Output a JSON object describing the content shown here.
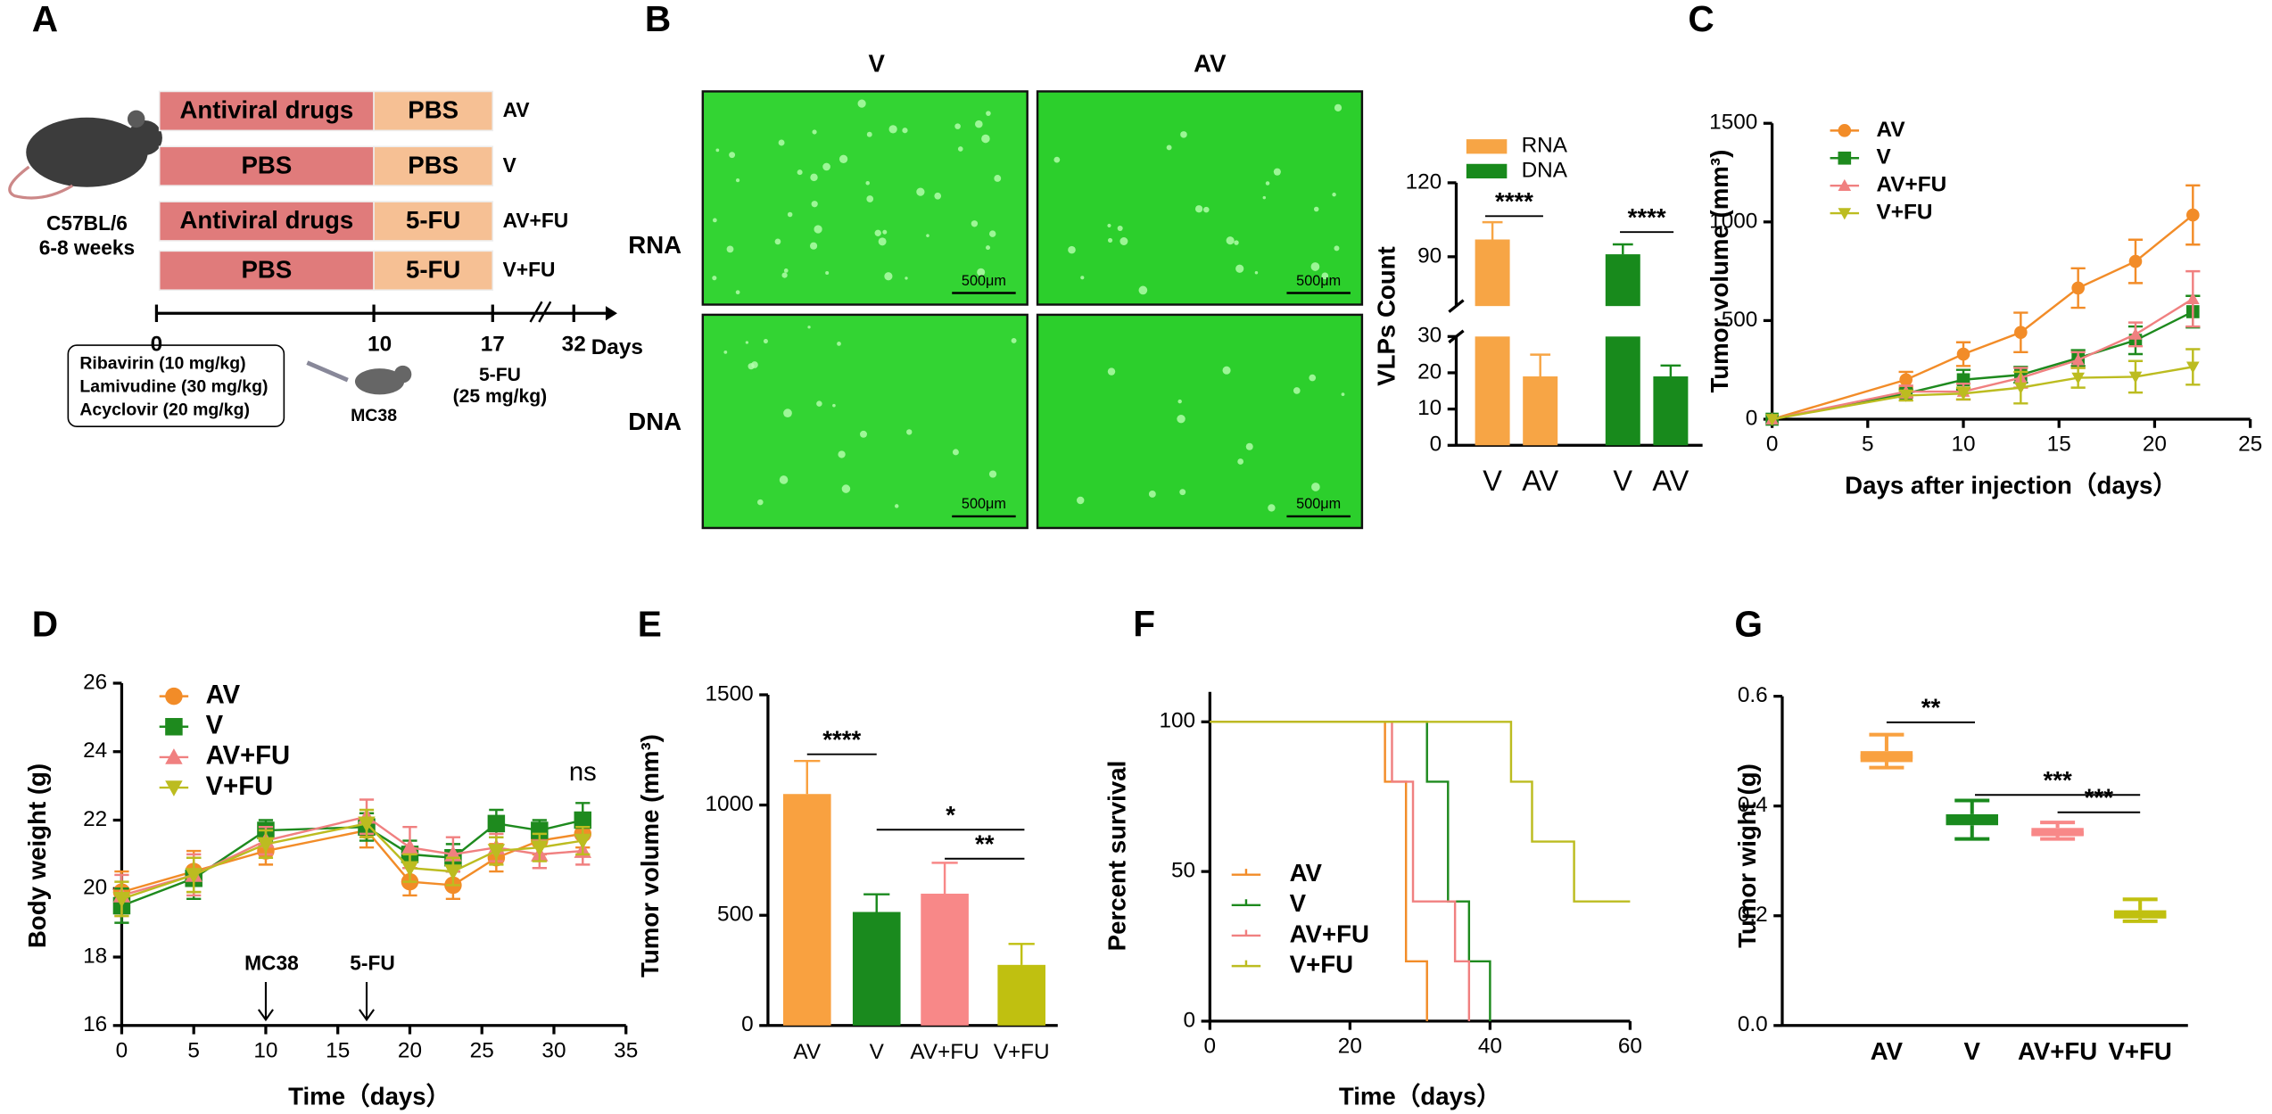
{
  "diagram": {
    "panel": "A",
    "strain": "C57BL/6",
    "age": "6-8 weeks",
    "groups": [
      {
        "drug": "Antiviral drugs",
        "treatment": "PBS",
        "name": "AV"
      },
      {
        "drug": "PBS",
        "treatment": "PBS",
        "name": "V"
      },
      {
        "drug": "Antiviral drugs",
        "treatment": "5-FU",
        "name": "AV+FU"
      },
      {
        "drug": "PBS",
        "treatment": "5-FU",
        "name": "V+FU"
      }
    ],
    "timeline": {
      "ticks": [
        "0",
        "10",
        "17",
        "32"
      ],
      "unit": "Days"
    },
    "regimen": [
      "Ribavirin (10 mg/kg)",
      "Lamivudine (30 mg/kg)",
      "Acyclovir (20 mg/kg)"
    ],
    "cell_line": "MC38",
    "chemo": "5-FU",
    "chemo_dose": "(25 mg/kg)"
  },
  "micrographs": {
    "panel": "B",
    "columns": [
      "V",
      "AV"
    ],
    "rows": [
      "RNA",
      "DNA"
    ],
    "scale_bar": "500μm"
  },
  "chart_data": [
    {
      "type": "bar",
      "ylabel": "VLPs Count",
      "axis_break": true,
      "categories": [
        "V",
        "AV"
      ],
      "series": [
        {
          "name": "RNA",
          "color": "#f7a545",
          "values": [
            97,
            19
          ],
          "errors": [
            7,
            6
          ]
        },
        {
          "name": "DNA",
          "color": "#188a1c",
          "values": [
            91,
            19
          ],
          "errors": [
            4,
            3
          ]
        }
      ],
      "ylim": [
        [
          0,
          30
        ],
        [
          70,
          120
        ]
      ],
      "yticks": [
        0,
        10,
        20,
        30,
        90,
        120
      ],
      "legend": "top",
      "annotations": [
        "****",
        "****"
      ]
    },
    {
      "type": "line",
      "panel": "C",
      "xlabel": "Days after injection（days）",
      "ylabel": "Tumor volume (mm³)",
      "x": [
        0,
        7,
        10,
        13,
        16,
        19,
        22
      ],
      "xlim": [
        0,
        25
      ],
      "xticks": [
        0,
        5,
        10,
        15,
        20,
        25
      ],
      "ylim": [
        0,
        1500
      ],
      "yticks": [
        0,
        500,
        1000,
        1500
      ],
      "legend": "upper left",
      "series": [
        {
          "name": "AV",
          "color": "#f28c28",
          "marker": "circle",
          "values": [
            0,
            200,
            330,
            440,
            665,
            800,
            1035
          ],
          "errors": [
            0,
            40,
            60,
            100,
            100,
            110,
            150
          ]
        },
        {
          "name": "V",
          "color": "#1e8a1e",
          "marker": "square",
          "values": [
            0,
            130,
            200,
            225,
            310,
            400,
            545
          ],
          "errors": [
            0,
            20,
            50,
            40,
            40,
            70,
            80
          ]
        },
        {
          "name": "AV+FU",
          "color": "#f08080",
          "marker": "triangle-up",
          "values": [
            0,
            140,
            140,
            210,
            300,
            430,
            610
          ],
          "errors": [
            0,
            30,
            40,
            50,
            40,
            60,
            140
          ]
        },
        {
          "name": "V+FU",
          "color": "#bcbc20",
          "marker": "triangle-down",
          "values": [
            0,
            120,
            130,
            160,
            210,
            215,
            265
          ],
          "errors": [
            0,
            25,
            30,
            80,
            50,
            80,
            90
          ]
        }
      ]
    },
    {
      "type": "line",
      "panel": "D",
      "xlabel": "Time（days）",
      "ylabel": "Body weight (g)",
      "x": [
        0,
        5,
        10,
        17,
        20,
        23,
        26,
        29,
        32
      ],
      "xlim": [
        0,
        35
      ],
      "xticks": [
        0,
        5,
        10,
        15,
        20,
        25,
        30,
        35
      ],
      "ylim": [
        16,
        26
      ],
      "yticks": [
        16,
        18,
        20,
        22,
        24,
        26
      ],
      "legend": "upper left",
      "annotations": [
        "ns"
      ],
      "arrows": [
        "MC38",
        "5-FU"
      ],
      "series": [
        {
          "name": "AV",
          "color": "#f28c28",
          "marker": "circle",
          "values": [
            19.9,
            20.5,
            21.1,
            21.7,
            20.2,
            20.1,
            20.9,
            21.4,
            21.6
          ],
          "errors": [
            0.6,
            0.6,
            0.4,
            0.5,
            0.4,
            0.4,
            0.4,
            0.4,
            0.4
          ]
        },
        {
          "name": "V",
          "color": "#1e8a1e",
          "marker": "square",
          "values": [
            19.5,
            20.3,
            21.7,
            21.8,
            21.0,
            20.9,
            21.9,
            21.7,
            22.0
          ],
          "errors": [
            0.5,
            0.6,
            0.3,
            0.4,
            0.4,
            0.4,
            0.4,
            0.3,
            0.5
          ]
        },
        {
          "name": "AV+FU",
          "color": "#f08080",
          "marker": "triangle-up",
          "values": [
            19.8,
            20.4,
            21.4,
            22.1,
            21.2,
            21.0,
            21.2,
            21.0,
            21.1
          ],
          "errors": [
            0.6,
            0.6,
            0.4,
            0.5,
            0.6,
            0.5,
            0.4,
            0.4,
            0.4
          ]
        },
        {
          "name": "V+FU",
          "color": "#bcbc20",
          "marker": "triangle-down",
          "values": [
            19.7,
            20.4,
            21.3,
            21.9,
            20.6,
            20.5,
            21.1,
            21.2,
            21.4
          ],
          "errors": [
            0.5,
            0.5,
            0.4,
            0.4,
            0.4,
            0.4,
            0.4,
            0.4,
            0.4
          ]
        }
      ]
    },
    {
      "type": "bar",
      "panel": "E",
      "ylabel": "Tumor volume (mm³)",
      "categories": [
        "AV",
        "V",
        "AV+FU",
        "V+FU"
      ],
      "values": [
        1050,
        515,
        598,
        275
      ],
      "errors": [
        150,
        80,
        140,
        95
      ],
      "colors": [
        "#f9a140",
        "#1a8a1e",
        "#f88888",
        "#c0c010"
      ],
      "ylim": [
        0,
        1500
      ],
      "yticks": [
        0,
        500,
        1000,
        1500
      ],
      "annotations": [
        "****",
        "*",
        "**"
      ]
    },
    {
      "type": "step",
      "panel": "F",
      "xlabel": "Time（days）",
      "ylabel": "Percent survival",
      "xlim": [
        0,
        60
      ],
      "xticks": [
        0,
        20,
        40,
        60
      ],
      "ylim": [
        0,
        110
      ],
      "yticks": [
        0,
        50,
        100
      ],
      "legend": "lower left",
      "series": [
        {
          "name": "AV",
          "color": "#f28c28",
          "x": [
            0,
            25,
            28,
            31
          ],
          "values": [
            100,
            80,
            20,
            0
          ]
        },
        {
          "name": "V",
          "color": "#1e8a1e",
          "x": [
            0,
            31,
            34,
            37,
            40
          ],
          "values": [
            100,
            80,
            40,
            20,
            0
          ]
        },
        {
          "name": "AV+FU",
          "color": "#f08080",
          "x": [
            0,
            26,
            29,
            35,
            37
          ],
          "values": [
            100,
            80,
            40,
            20,
            0
          ]
        },
        {
          "name": "V+FU",
          "color": "#bcbc20",
          "x": [
            0,
            43,
            46,
            52,
            60
          ],
          "values": [
            100,
            80,
            60,
            40,
            40
          ]
        }
      ]
    },
    {
      "type": "box",
      "panel": "G",
      "ylabel": "Tumor wight (g)",
      "categories": [
        "AV",
        "V",
        "AV+FU",
        "V+FU"
      ],
      "min": [
        0.47,
        0.34,
        0.34,
        0.19
      ],
      "q1": [
        0.48,
        0.365,
        0.345,
        0.195
      ],
      "median": [
        0.49,
        0.38,
        0.35,
        0.2
      ],
      "q3": [
        0.5,
        0.385,
        0.36,
        0.21
      ],
      "max": [
        0.53,
        0.41,
        0.37,
        0.23
      ],
      "colors": [
        "#f9a140",
        "#1a8a1e",
        "#f88888",
        "#c0c010"
      ],
      "ylim": [
        0,
        0.6
      ],
      "yticks": [
        {
          "value": 0,
          "label": "0.0"
        },
        0.2,
        0.4,
        0.6
      ],
      "annotations": [
        "**",
        "***",
        "***"
      ]
    }
  ]
}
